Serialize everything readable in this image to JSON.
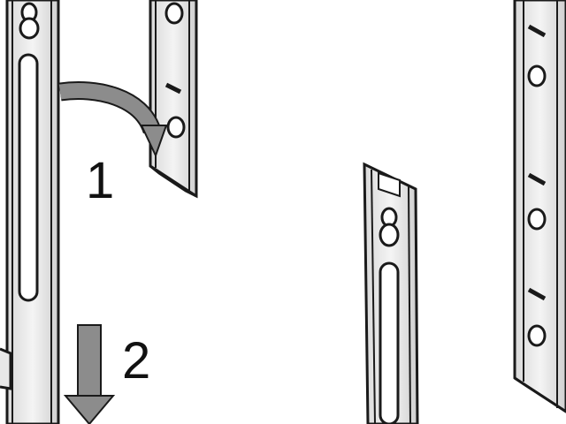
{
  "steps": {
    "first": "1",
    "second": "2"
  },
  "colors": {
    "outline": "#1a1a1a",
    "arrow": "#8c8c8c",
    "rail_light": "#f2f2f2",
    "rail_shade": "#d6d6d6",
    "background": "#ffffff"
  },
  "icons": {
    "curved_arrow": "curved-arrow-icon",
    "down_arrow": "down-arrow-icon"
  }
}
